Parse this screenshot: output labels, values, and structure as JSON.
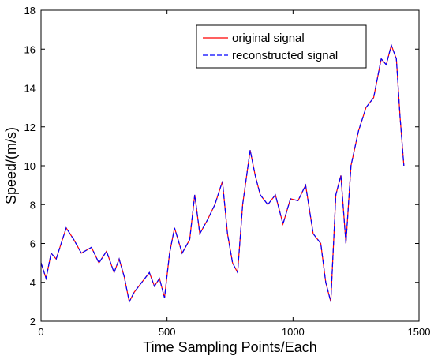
{
  "chart_data": {
    "type": "line",
    "xlabel": "Time Sampling Points/Each",
    "ylabel": "Speed/(m/s)",
    "xlim": [
      0,
      1500
    ],
    "ylim": [
      2,
      18
    ],
    "xticks": [
      0,
      500,
      1000,
      1500
    ],
    "yticks": [
      2,
      4,
      6,
      8,
      10,
      12,
      14,
      16,
      18
    ],
    "grid": false,
    "legend_position": "top-right",
    "series": [
      {
        "name": "original signal",
        "color": "#ff0000",
        "style": "solid",
        "x": [
          0,
          20,
          40,
          60,
          80,
          100,
          130,
          160,
          200,
          230,
          260,
          290,
          310,
          330,
          350,
          370,
          400,
          430,
          450,
          470,
          490,
          510,
          530,
          560,
          590,
          610,
          630,
          660,
          690,
          720,
          740,
          760,
          780,
          800,
          830,
          850,
          870,
          900,
          930,
          960,
          990,
          1020,
          1050,
          1080,
          1110,
          1130,
          1150,
          1170,
          1190,
          1210,
          1230,
          1260,
          1290,
          1320,
          1350,
          1370,
          1390,
          1410,
          1425,
          1440
        ],
        "y": [
          5.0,
          4.2,
          5.5,
          5.2,
          6.0,
          6.8,
          6.2,
          5.5,
          5.8,
          5.0,
          5.6,
          4.5,
          5.2,
          4.3,
          3.0,
          3.5,
          4.0,
          4.5,
          3.8,
          4.2,
          3.2,
          5.5,
          6.8,
          5.5,
          6.2,
          8.5,
          6.5,
          7.2,
          8.0,
          9.2,
          6.5,
          5.0,
          4.5,
          8.0,
          10.8,
          9.5,
          8.5,
          8.0,
          8.5,
          7.0,
          8.3,
          8.2,
          9.0,
          6.5,
          6.0,
          4.0,
          3.0,
          8.5,
          9.5,
          6.0,
          10.0,
          11.8,
          13.0,
          13.5,
          15.5,
          15.2,
          16.2,
          15.5,
          12.5,
          10.0
        ]
      },
      {
        "name": "reconstructed signal",
        "color": "#0000ff",
        "style": "dashed",
        "x": [
          0,
          20,
          40,
          60,
          80,
          100,
          130,
          160,
          200,
          230,
          260,
          290,
          310,
          330,
          350,
          370,
          400,
          430,
          450,
          470,
          490,
          510,
          530,
          560,
          590,
          610,
          630,
          660,
          690,
          720,
          740,
          760,
          780,
          800,
          830,
          850,
          870,
          900,
          930,
          960,
          990,
          1020,
          1050,
          1080,
          1110,
          1130,
          1150,
          1170,
          1190,
          1210,
          1230,
          1260,
          1290,
          1320,
          1350,
          1370,
          1390,
          1410,
          1425,
          1440
        ],
        "y": [
          5.0,
          4.2,
          5.5,
          5.2,
          6.0,
          6.8,
          6.2,
          5.5,
          5.8,
          5.0,
          5.6,
          4.5,
          5.2,
          4.3,
          3.0,
          3.5,
          4.0,
          4.5,
          3.8,
          4.2,
          3.2,
          5.5,
          6.8,
          5.5,
          6.2,
          8.5,
          6.5,
          7.2,
          8.0,
          9.2,
          6.5,
          5.0,
          4.5,
          8.0,
          10.8,
          9.5,
          8.5,
          8.0,
          8.5,
          7.0,
          8.3,
          8.2,
          9.0,
          6.5,
          6.0,
          4.0,
          3.0,
          8.5,
          9.5,
          6.0,
          10.0,
          11.8,
          13.0,
          13.5,
          15.5,
          15.2,
          16.2,
          15.5,
          12.5,
          10.0
        ]
      }
    ]
  }
}
